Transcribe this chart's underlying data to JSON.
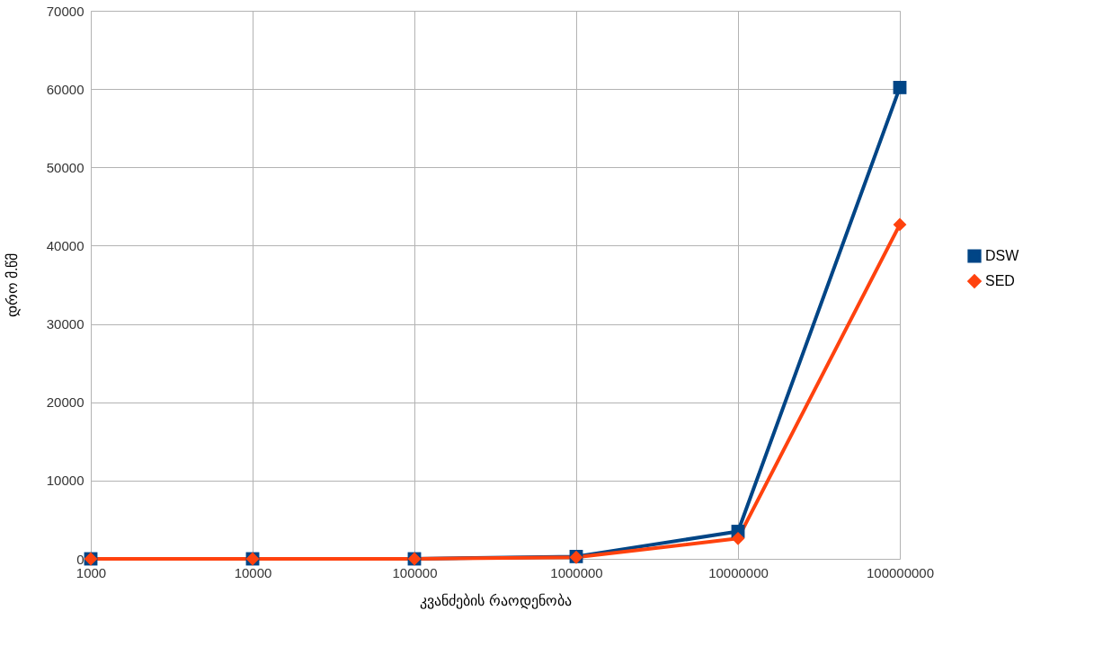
{
  "chart_data": {
    "type": "line",
    "xlabel": "კვანძების რაოდენობა",
    "ylabel": "დრო მ.წმ",
    "categories": [
      "1000",
      "10000",
      "100000",
      "1000000",
      "10000000",
      "100000000"
    ],
    "series": [
      {
        "name": "DSW",
        "color": "#004586",
        "marker": "square",
        "values": [
          0,
          0,
          0,
          300,
          3500,
          60200
        ]
      },
      {
        "name": "SED",
        "color": "#ff420e",
        "marker": "diamond",
        "values": [
          0,
          0,
          0,
          200,
          2600,
          42700
        ]
      }
    ],
    "ylim": [
      0,
      70000
    ],
    "yticks": [
      0,
      10000,
      20000,
      30000,
      40000,
      50000,
      60000,
      70000
    ],
    "grid": true,
    "legend": "right",
    "line_style": "solid"
  }
}
